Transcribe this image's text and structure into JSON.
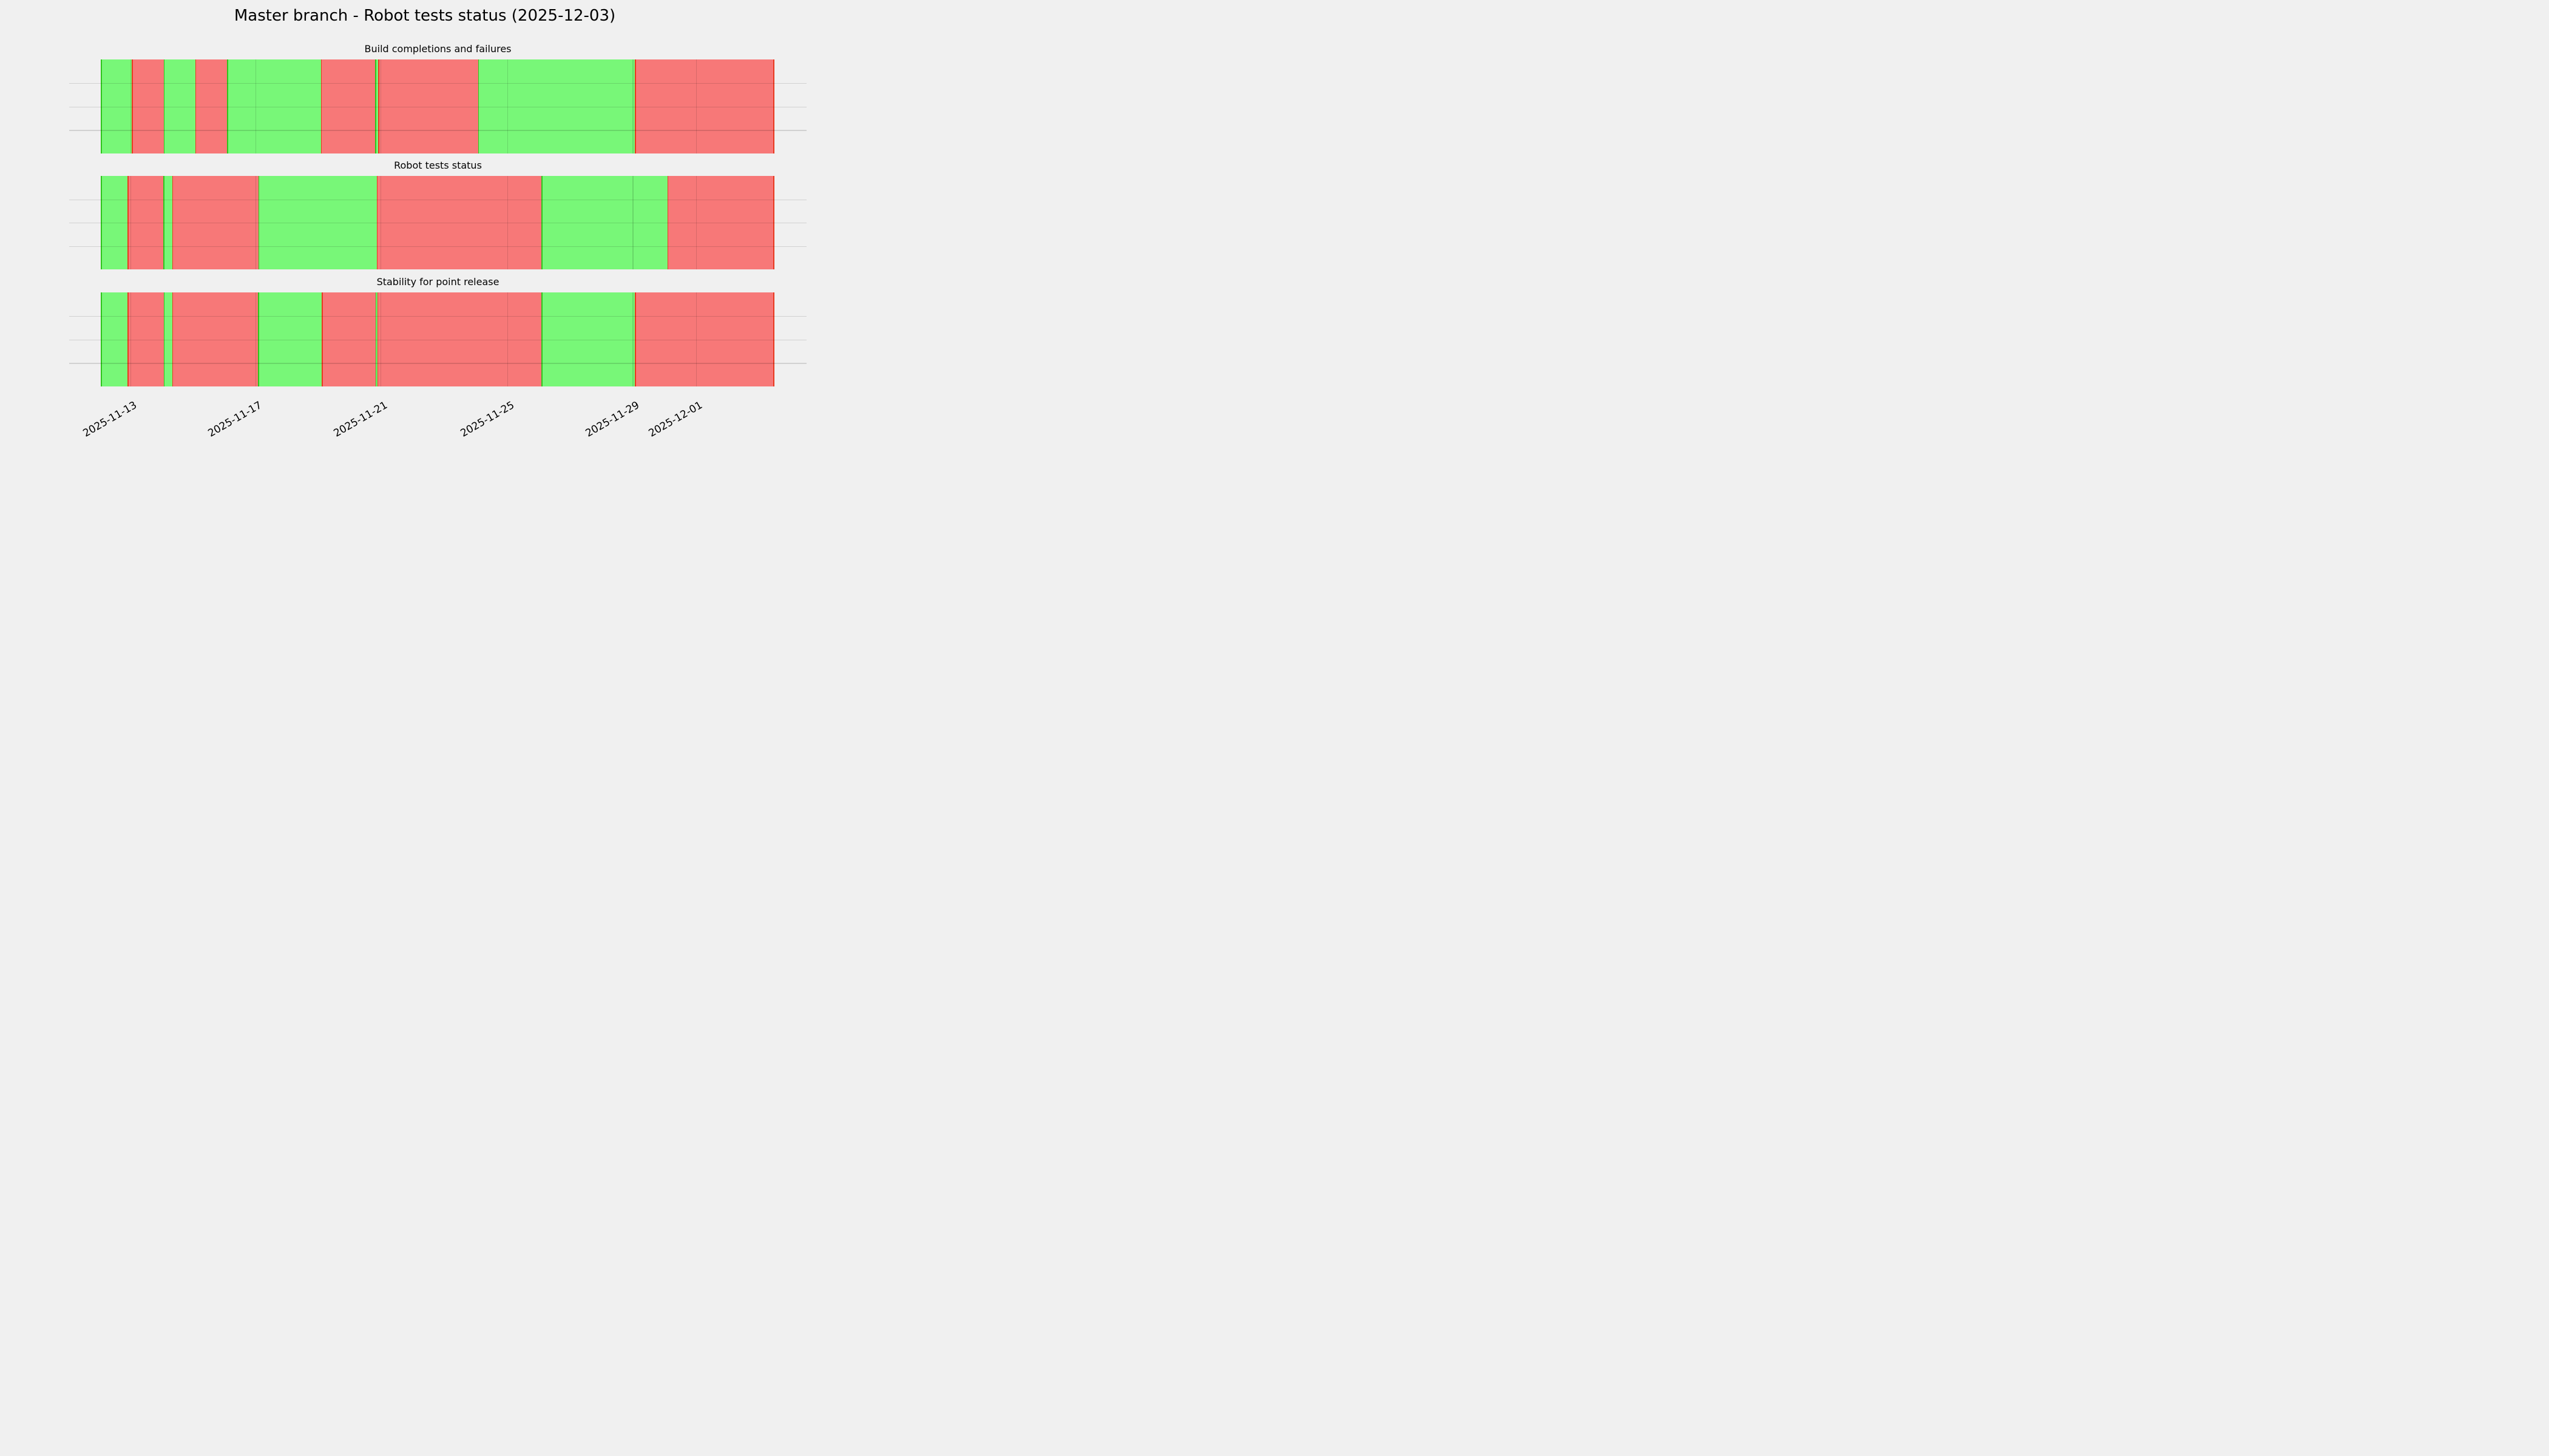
{
  "figure": {
    "title": "Master branch - Robot tests status (2025-12-03)",
    "background": "#f0f0f0",
    "colors": {
      "pass_fill": "#78f778",
      "fail_fill": "#f77878",
      "pass_event_line": "#2fc51d",
      "fail_event_line": "#e8391f",
      "gridline": "rgba(0,0,0,0.13)"
    }
  },
  "chart_data": {
    "type": "area",
    "kind": "status-timeline",
    "title": "Master branch - Robot tests status (2025-12-03)",
    "status_legend": {
      "green": "pass",
      "red": "fail"
    },
    "grid": {
      "horizontal_lines_pct": [
        25,
        50,
        75
      ],
      "vertical_lines": "at date ticks",
      "drawn_above_data": true
    },
    "x_axis": {
      "range_start_estimate": "2025-11-12 01:30",
      "range_end_estimate": "2025-12-03 13:00",
      "tick_labels": [
        "2025-11-13",
        "2025-11-17",
        "2025-11-21",
        "2025-11-25",
        "2025-11-29",
        "2025-12-01"
      ],
      "tick_positions_pct": [
        4.36,
        22.96,
        41.58,
        60.44,
        79.06,
        88.48
      ],
      "label_rotation_deg": 30
    },
    "subplots": [
      {
        "title": "Build completions and failures",
        "segments": [
          {
            "status": "pass",
            "start_pct": 0.0,
            "end_pct": 4.6,
            "start": "~2025-11-12 01:30",
            "end": "~2025-11-13 01:15"
          },
          {
            "status": "fail",
            "start_pct": 4.6,
            "end_pct": 9.33,
            "start": "~2025-11-13 01:15",
            "end": "~2025-11-14 01:35"
          },
          {
            "status": "pass",
            "start_pct": 9.33,
            "end_pct": 14.05,
            "start": "~2025-11-14 01:35",
            "end": "~2025-11-15 02:00"
          },
          {
            "status": "fail",
            "start_pct": 14.05,
            "end_pct": 18.77,
            "start": "~2025-11-15 02:00",
            "end": "~2025-11-16 02:20"
          },
          {
            "status": "pass",
            "start_pct": 18.77,
            "end_pct": 32.73,
            "start": "~2025-11-16 02:20",
            "end": "~2025-11-19 02:20"
          },
          {
            "status": "fail",
            "start_pct": 32.73,
            "end_pct": 40.79,
            "start": "~2025-11-19 02:20",
            "end": "~2025-11-20 19:50"
          },
          {
            "status": "pass",
            "start_pct": 40.79,
            "end_pct": 41.25,
            "start": "~2025-11-20 19:50",
            "end": "~2025-11-20 22:10"
          },
          {
            "status": "fail",
            "start_pct": 41.25,
            "end_pct": 56.1,
            "start": "~2025-11-20 22:10",
            "end": "~2025-11-24 02:50"
          },
          {
            "status": "pass",
            "start_pct": 56.1,
            "end_pct": 79.42,
            "start": "~2025-11-24 02:50",
            "end": "~2025-11-29 03:05"
          },
          {
            "status": "fail",
            "start_pct": 79.42,
            "end_pct": 100.0,
            "start": "~2025-11-29 03:05",
            "end": "~2025-12-03 13:00"
          }
        ]
      },
      {
        "title": "Robot tests status",
        "segments": [
          {
            "status": "pass",
            "start_pct": 0.0,
            "end_pct": 3.97,
            "start": "~2025-11-12 01:30",
            "end": "~2025-11-12 22:00"
          },
          {
            "status": "fail",
            "start_pct": 3.97,
            "end_pct": 9.3,
            "start": "~2025-11-12 22:00",
            "end": "~2025-11-14 01:25"
          },
          {
            "status": "pass",
            "start_pct": 9.3,
            "end_pct": 10.62,
            "start": "~2025-11-14 01:25",
            "end": "~2025-11-14 08:15"
          },
          {
            "status": "fail",
            "start_pct": 10.62,
            "end_pct": 23.44,
            "start": "~2025-11-14 08:15",
            "end": "~2025-11-17 02:20"
          },
          {
            "status": "pass",
            "start_pct": 23.44,
            "end_pct": 41.04,
            "start": "~2025-11-17 02:20",
            "end": "~2025-11-20 21:05"
          },
          {
            "status": "fail",
            "start_pct": 41.04,
            "end_pct": 65.52,
            "start": "~2025-11-20 21:05",
            "end": "~2025-11-26 03:25"
          },
          {
            "status": "pass",
            "start_pct": 65.52,
            "end_pct": 84.24,
            "start": "~2025-11-26 03:25",
            "end": "~2025-11-30 03:55"
          },
          {
            "status": "fail",
            "start_pct": 84.24,
            "end_pct": 100.0,
            "start": "~2025-11-30 03:55",
            "end": "~2025-12-03 13:00"
          }
        ]
      },
      {
        "title": "Stability for point release",
        "segments": [
          {
            "status": "pass",
            "start_pct": 0.0,
            "end_pct": 3.97,
            "start": "~2025-11-12 01:30",
            "end": "~2025-11-12 22:00"
          },
          {
            "status": "fail",
            "start_pct": 3.97,
            "end_pct": 9.33,
            "start": "~2025-11-12 22:00",
            "end": "~2025-11-14 01:35"
          },
          {
            "status": "pass",
            "start_pct": 9.33,
            "end_pct": 10.62,
            "start": "~2025-11-14 01:35",
            "end": "~2025-11-14 08:15"
          },
          {
            "status": "fail",
            "start_pct": 10.62,
            "end_pct": 23.38,
            "start": "~2025-11-14 08:15",
            "end": "~2025-11-17 02:05"
          },
          {
            "status": "pass",
            "start_pct": 23.38,
            "end_pct": 32.85,
            "start": "~2025-11-17 02:05",
            "end": "~2025-11-19 02:55"
          },
          {
            "status": "fail",
            "start_pct": 32.85,
            "end_pct": 40.82,
            "start": "~2025-11-19 02:55",
            "end": "~2025-11-20 19:55"
          },
          {
            "status": "pass",
            "start_pct": 40.82,
            "end_pct": 41.12,
            "start": "~2025-11-20 19:55",
            "end": "~2025-11-20 21:30"
          },
          {
            "status": "fail",
            "start_pct": 41.12,
            "end_pct": 65.52,
            "start": "~2025-11-20 21:30",
            "end": "~2025-11-26 03:25"
          },
          {
            "status": "pass",
            "start_pct": 65.52,
            "end_pct": 79.42,
            "start": "~2025-11-26 03:25",
            "end": "~2025-11-29 03:05"
          },
          {
            "status": "fail",
            "start_pct": 79.42,
            "end_pct": 100.0,
            "start": "~2025-11-29 03:05",
            "end": "~2025-12-03 13:00"
          }
        ]
      }
    ]
  }
}
